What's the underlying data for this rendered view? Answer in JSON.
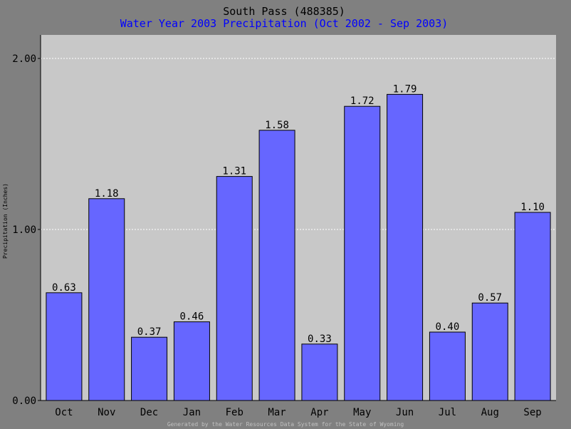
{
  "chart_data": {
    "type": "bar",
    "title": "South Pass (488385)",
    "subtitle": "Water Year 2003 Precipitation (Oct 2002 - Sep 2003)",
    "ylabel": "Precipitation (Inches)",
    "xlabel": "",
    "footer": "Generated by the Water Resources Data System for the State of Wyoming",
    "categories": [
      "Oct",
      "Nov",
      "Dec",
      "Jan",
      "Feb",
      "Mar",
      "Apr",
      "May",
      "Jun",
      "Jul",
      "Aug",
      "Sep"
    ],
    "values": [
      0.63,
      1.18,
      0.37,
      0.46,
      1.31,
      1.58,
      0.33,
      1.72,
      1.79,
      0.4,
      0.57,
      1.1
    ],
    "value_labels": [
      "0.63",
      "1.18",
      "0.37",
      "0.46",
      "1.31",
      "1.58",
      "0.33",
      "1.72",
      "1.79",
      "0.40",
      "0.57",
      "1.10"
    ],
    "yticks": [
      0,
      1,
      2
    ],
    "ytick_labels": [
      "0.00",
      "1.00",
      "2.00"
    ],
    "ylim": [
      0,
      2.0
    ],
    "grid": true,
    "legend": "none",
    "colors": {
      "background": "#808080",
      "plot_background": "#c8c8c8",
      "bar_fill": "#6666ff",
      "bar_stroke": "#000000",
      "title": "#000000",
      "subtitle": "#0000ff",
      "gridline": "#ffffff",
      "footer_text": "#c0c0c0"
    }
  }
}
